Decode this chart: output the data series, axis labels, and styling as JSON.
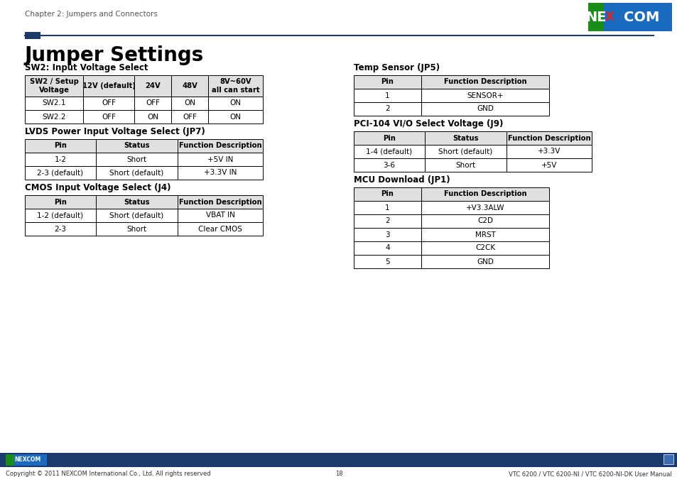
{
  "page_title": "Jumper Settings",
  "header_text": "Chapter 2: Jumpers and Connectors",
  "footer_left": "Copyright © 2011 NEXCOM International Co., Ltd. All rights reserved",
  "footer_center": "18",
  "footer_right": "VTC 6200 / VTC 6200-NI / VTC 6200-NI-DK User Manual",
  "header_line_color": "#1a3a6b",
  "header_rect_color": "#1a3a6b",
  "footer_bar_color": "#1a3a6b",
  "sw2_title": "SW2: Input Voltage Select",
  "sw2_headers": [
    "SW2 / Setup\nVoltage",
    "12V (default)",
    "24V",
    "48V",
    "8V~60V\nall can start"
  ],
  "sw2_rows": [
    [
      "SW2.1",
      "OFF",
      "OFF",
      "ON",
      "ON"
    ],
    [
      "SW2.2",
      "OFF",
      "ON",
      "OFF",
      "ON"
    ]
  ],
  "lvds_title": "LVDS Power Input Voltage Select (JP7)",
  "lvds_headers": [
    "Pin",
    "Status",
    "Function Description"
  ],
  "lvds_rows": [
    [
      "1-2",
      "Short",
      "+5V IN"
    ],
    [
      "2-3 (default)",
      "Short (default)",
      "+3.3V IN"
    ]
  ],
  "cmos_title": "CMOS Input Voltage Select (J4)",
  "cmos_headers": [
    "Pin",
    "Status",
    "Function Description"
  ],
  "cmos_rows": [
    [
      "1-2 (default)",
      "Short (default)",
      "VBAT IN"
    ],
    [
      "2-3",
      "Short",
      "Clear CMOS"
    ]
  ],
  "temp_title": "Temp Sensor (JP5)",
  "temp_headers": [
    "Pin",
    "Function Description"
  ],
  "temp_rows": [
    [
      "1",
      "SENSOR+"
    ],
    [
      "2",
      "GND"
    ]
  ],
  "pci_title": "PCI-104 VI/O Select Voltage (J9)",
  "pci_headers": [
    "Pin",
    "Status",
    "Function Description"
  ],
  "pci_rows": [
    [
      "1-4 (default)",
      "Short (default)",
      "+3.3V"
    ],
    [
      "3-6",
      "Short",
      "+5V"
    ]
  ],
  "mcu_title": "MCU Download (JP1)",
  "mcu_headers": [
    "Pin",
    "Function Description"
  ],
  "mcu_rows": [
    [
      "1",
      "+V3.3ALW"
    ],
    [
      "2",
      "C2D"
    ],
    [
      "3",
      "MRST"
    ],
    [
      "4",
      "C2CK"
    ],
    [
      "5",
      "GND"
    ]
  ],
  "bg_color": "#ffffff",
  "text_color": "#000000",
  "title_color": "#000000",
  "table_border": "#000000",
  "table_header_bg": "#e0e0e0"
}
